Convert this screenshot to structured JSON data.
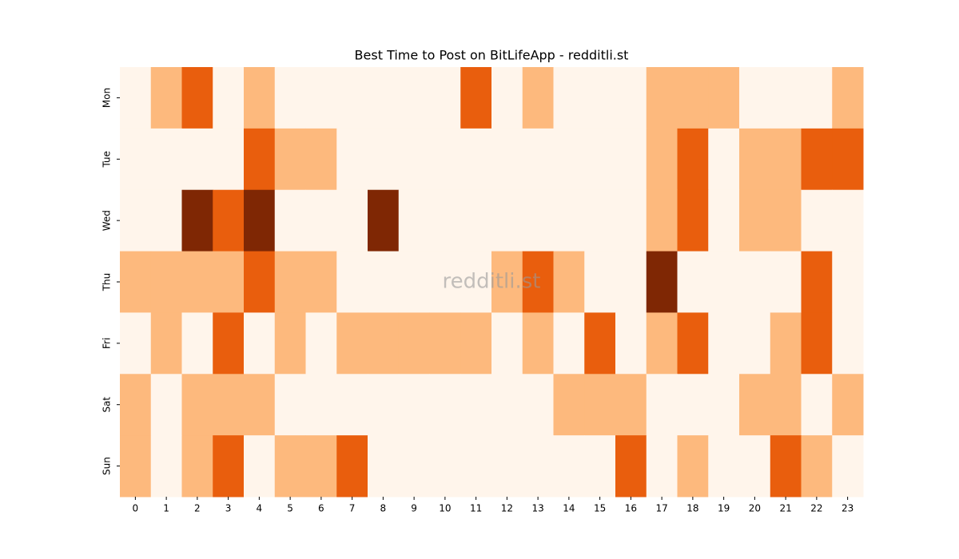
{
  "chart_data": {
    "type": "heatmap",
    "title": "Best Time to Post on BitLifeApp - redditli.st",
    "annotation": "redditli.st",
    "x_categories": [
      "0",
      "1",
      "2",
      "3",
      "4",
      "5",
      "6",
      "7",
      "8",
      "9",
      "10",
      "11",
      "12",
      "13",
      "14",
      "15",
      "16",
      "17",
      "18",
      "19",
      "20",
      "21",
      "22",
      "23"
    ],
    "y_categories": [
      "Mon",
      "Tue",
      "Wed",
      "Thu",
      "Fri",
      "Sat",
      "Sun"
    ],
    "colors": [
      "#fff5eb",
      "#fdb97d",
      "#e95e0d",
      "#7f2704"
    ],
    "values": [
      [
        0,
        1,
        2,
        0,
        1,
        0,
        0,
        0,
        0,
        0,
        0,
        2,
        0,
        1,
        0,
        0,
        0,
        1,
        1,
        1,
        0,
        0,
        0,
        1
      ],
      [
        0,
        0,
        0,
        0,
        2,
        1,
        1,
        0,
        0,
        0,
        0,
        0,
        0,
        0,
        0,
        0,
        0,
        1,
        2,
        0,
        1,
        1,
        2,
        2
      ],
      [
        0,
        0,
        3,
        2,
        3,
        0,
        0,
        0,
        3,
        0,
        0,
        0,
        0,
        0,
        0,
        0,
        0,
        1,
        2,
        0,
        1,
        1,
        0,
        0
      ],
      [
        1,
        1,
        1,
        1,
        2,
        1,
        1,
        0,
        0,
        0,
        0,
        0,
        1,
        2,
        1,
        0,
        0,
        3,
        0,
        0,
        0,
        0,
        2,
        0
      ],
      [
        0,
        1,
        0,
        2,
        0,
        1,
        0,
        1,
        1,
        1,
        1,
        1,
        0,
        1,
        0,
        2,
        0,
        1,
        2,
        0,
        0,
        1,
        2,
        0
      ],
      [
        1,
        0,
        1,
        1,
        1,
        0,
        0,
        0,
        0,
        0,
        0,
        0,
        0,
        0,
        1,
        1,
        1,
        0,
        0,
        0,
        1,
        1,
        0,
        1
      ],
      [
        1,
        0,
        1,
        2,
        0,
        1,
        1,
        2,
        0,
        0,
        0,
        0,
        0,
        0,
        0,
        0,
        2,
        0,
        1,
        0,
        0,
        2,
        1,
        0
      ]
    ]
  }
}
